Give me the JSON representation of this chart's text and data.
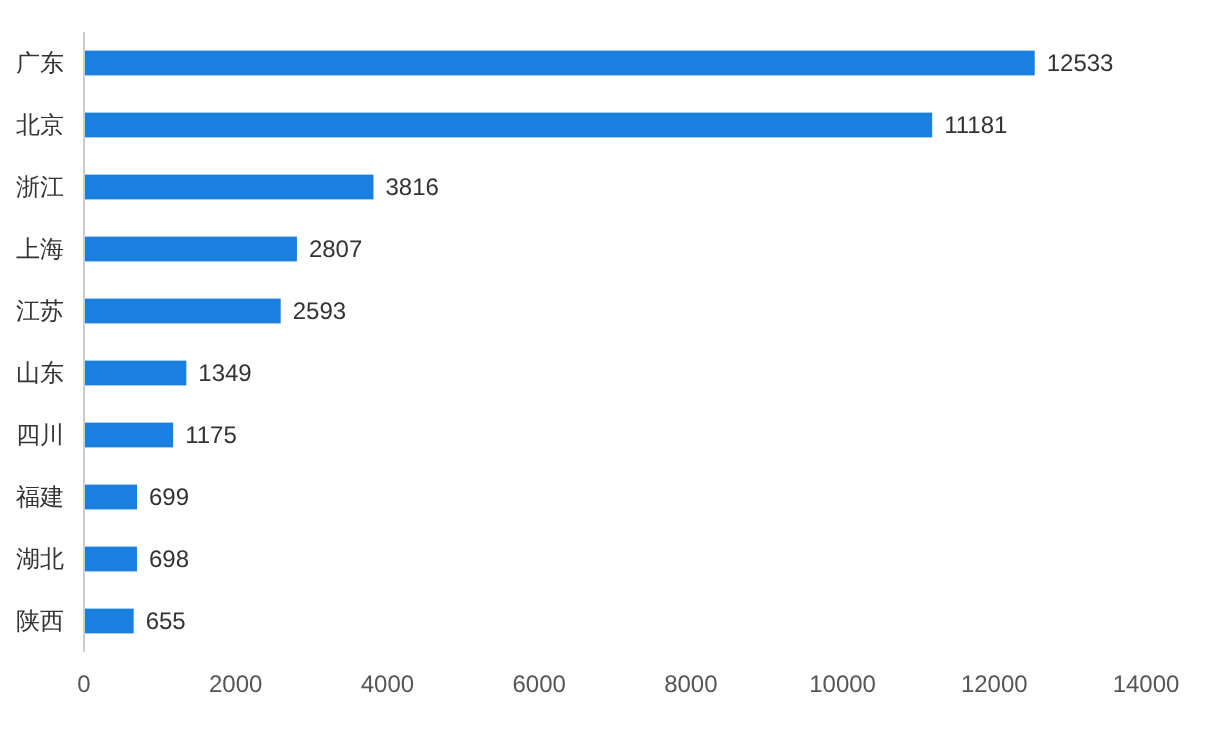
{
  "chart_data": {
    "type": "bar",
    "orientation": "horizontal",
    "categories": [
      "广东",
      "北京",
      "浙江",
      "上海",
      "江苏",
      "山东",
      "四川",
      "福建",
      "湖北",
      "陕西"
    ],
    "values": [
      12533,
      11181,
      3816,
      2807,
      2593,
      1349,
      1175,
      699,
      698,
      655
    ],
    "color": "#1b7fe0",
    "xlim": [
      0,
      14000
    ],
    "xticks": [
      0,
      2000,
      4000,
      6000,
      8000,
      10000,
      12000,
      14000
    ],
    "grid": false,
    "data_labels": true
  }
}
